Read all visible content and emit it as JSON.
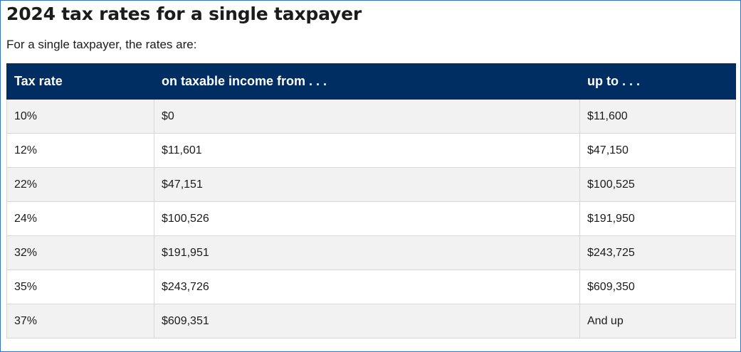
{
  "title": "2024 tax rates for a single taxpayer",
  "intro": "For a single taxpayer, the rates are:",
  "table": {
    "headers": [
      "Tax rate",
      "on taxable income from . . .",
      "up to . . ."
    ],
    "rows": [
      [
        "10%",
        "$0",
        "$11,600"
      ],
      [
        "12%",
        "$11,601",
        "$47,150"
      ],
      [
        "22%",
        "$47,151",
        "$100,525"
      ],
      [
        "24%",
        "$100,526",
        "$191,950"
      ],
      [
        "32%",
        "$191,951",
        "$243,725"
      ],
      [
        "35%",
        "$243,726",
        "$609,350"
      ],
      [
        "37%",
        "$609,351",
        "And up"
      ]
    ]
  },
  "colors": {
    "header_bg": "#002d62",
    "header_text": "#ffffff",
    "row_stripe": "#f2f2f2",
    "frame_border": "#2f74c5"
  }
}
